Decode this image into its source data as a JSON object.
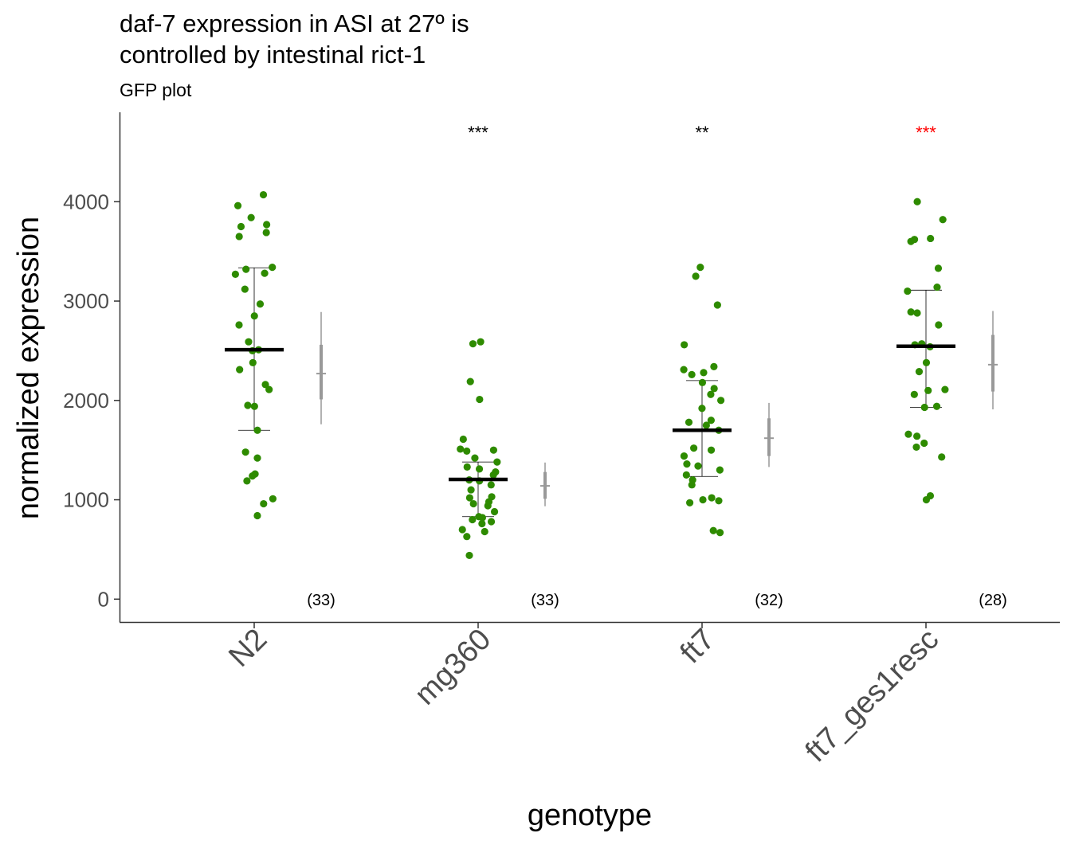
{
  "chart_data": {
    "type": "scatter",
    "title": "daf-7 expression in ASI at 27º is",
    "title_line2": "controlled by intestinal rict-1",
    "subtitle": "GFP plot",
    "xlabel": "genotype",
    "ylabel": "normalized expression",
    "ylim": [
      -230,
      4900
    ],
    "yticks": [
      0,
      1000,
      2000,
      3000,
      4000
    ],
    "ytick_labels": [
      "0",
      "1000",
      "2000",
      "3000",
      "4000"
    ],
    "grid": false,
    "point_color": "#2e8b00",
    "mean_color": "#000000",
    "ci_color": "#999999",
    "categories": [
      "N2",
      "mg360",
      "ft7",
      "ft7_ges1resc"
    ],
    "groups": [
      {
        "name": "N2",
        "mean": 2510,
        "sd_low": 1700,
        "sd_high": 3335,
        "ci_mean": 2270,
        "ci_inner": [
          2010,
          2560
        ],
        "ci_outer": [
          1760,
          2890
        ],
        "n_label": "(33)",
        "sig_label": "",
        "sig_color": "#000000",
        "values": [
          4070,
          3960,
          3840,
          3770,
          3750,
          3690,
          3650,
          3340,
          3320,
          3280,
          3270,
          3120,
          2970,
          2850,
          2760,
          2590,
          2510,
          2500,
          2380,
          2310,
          2160,
          2110,
          1950,
          1940,
          1700,
          1480,
          1420,
          1260,
          1240,
          1190,
          1010,
          960,
          840
        ]
      },
      {
        "name": "mg360",
        "mean": 1205,
        "sd_low": 830,
        "sd_high": 1380,
        "ci_mean": 1140,
        "ci_inner": [
          1010,
          1280
        ],
        "ci_outer": [
          935,
          1375
        ],
        "n_label": "(33)",
        "sig_label": "***",
        "sig_color": "#000000",
        "values": [
          2590,
          2570,
          2190,
          2010,
          1610,
          1510,
          1500,
          1490,
          1420,
          1380,
          1330,
          1310,
          1280,
          1250,
          1200,
          1190,
          1150,
          1100,
          1030,
          1020,
          980,
          960,
          940,
          880,
          830,
          820,
          800,
          780,
          760,
          700,
          680,
          630,
          440
        ]
      },
      {
        "name": "ft7",
        "mean": 1700,
        "sd_low": 1235,
        "sd_high": 2200,
        "ci_mean": 1620,
        "ci_inner": [
          1440,
          1820
        ],
        "ci_outer": [
          1330,
          1975
        ],
        "n_label": "(32)",
        "sig_label": "**",
        "sig_color": "#000000",
        "values": [
          3340,
          3250,
          2960,
          2560,
          2340,
          2310,
          2280,
          2260,
          2180,
          2120,
          2060,
          2000,
          1920,
          1800,
          1780,
          1750,
          1700,
          1520,
          1500,
          1440,
          1360,
          1340,
          1300,
          1250,
          1200,
          1150,
          1020,
          1000,
          990,
          970,
          690,
          670
        ]
      },
      {
        "name": "ft7_ges1resc",
        "mean": 2545,
        "sd_low": 1930,
        "sd_high": 3110,
        "ci_mean": 2360,
        "ci_inner": [
          2090,
          2660
        ],
        "ci_outer": [
          1910,
          2900
        ],
        "n_label": "(28)",
        "sig_label": "***",
        "sig_color": "#ff0000",
        "values": [
          4000,
          3820,
          3630,
          3600,
          3620,
          3330,
          3140,
          3100,
          2890,
          2880,
          2760,
          2560,
          2570,
          2540,
          2380,
          2290,
          2110,
          2100,
          2060,
          1940,
          1930,
          1660,
          1640,
          1570,
          1530,
          1430,
          1040,
          1000
        ]
      }
    ]
  }
}
